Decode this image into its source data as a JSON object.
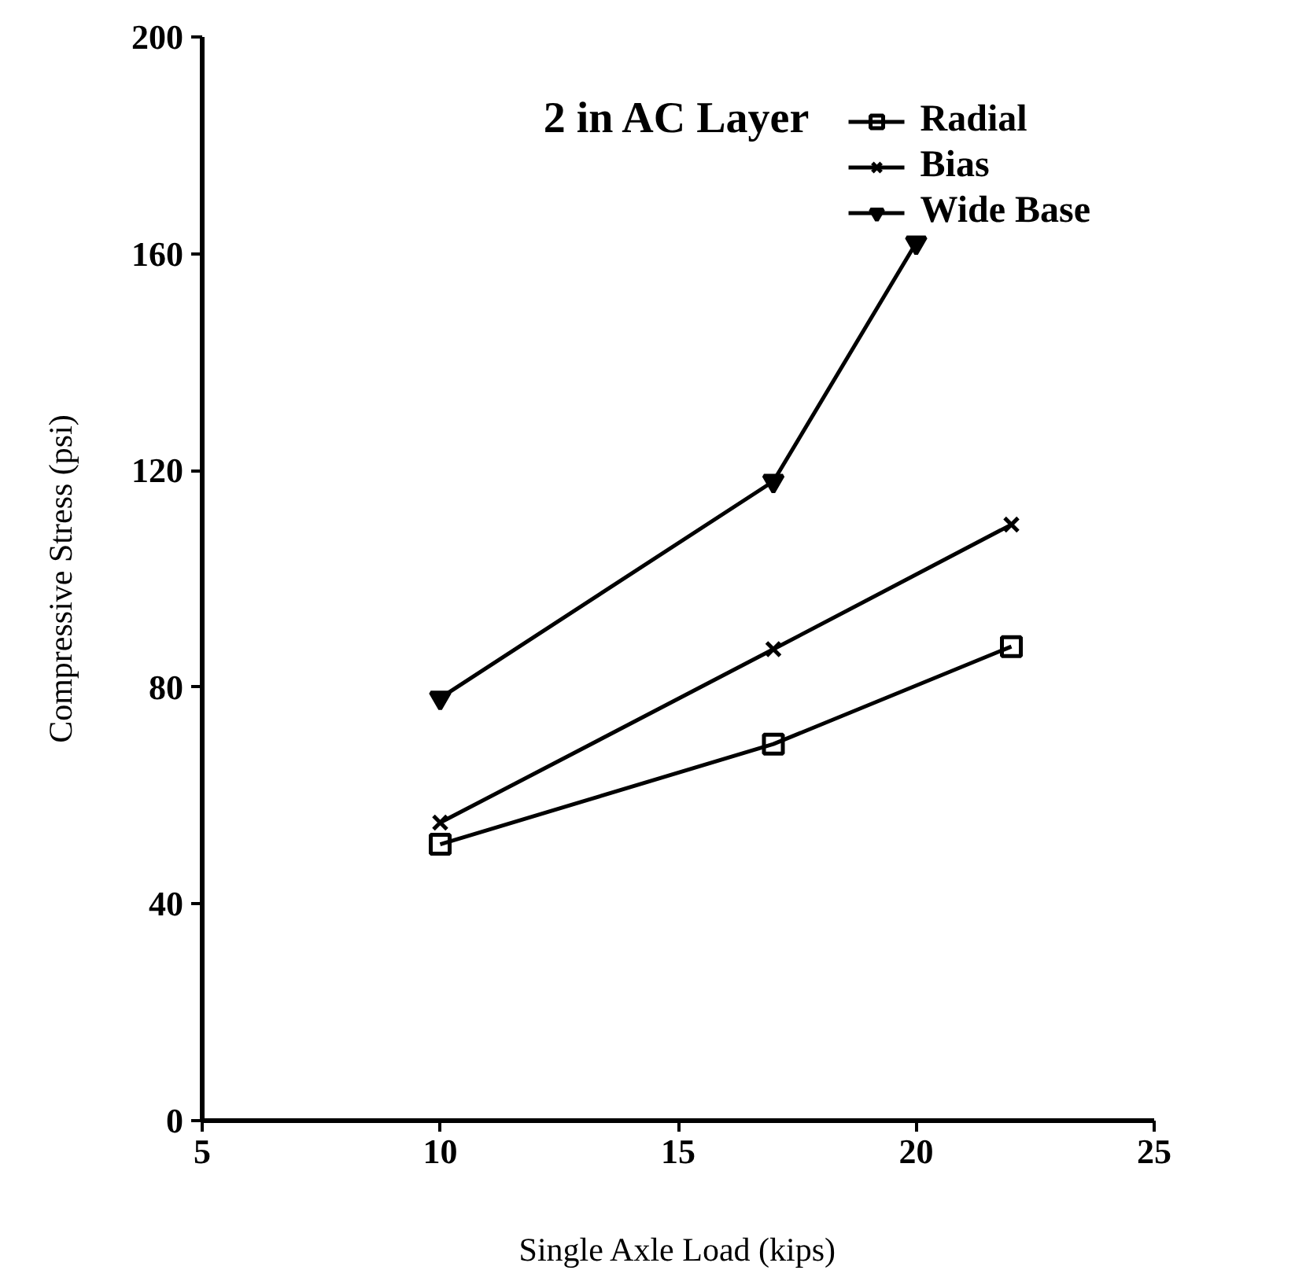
{
  "chart_data": {
    "type": "line",
    "title": "2 in AC Layer",
    "xlabel": "Single Axle Load (kips)",
    "ylabel": "Compressive Stress (psi)",
    "xlim": [
      5,
      25
    ],
    "xticks": [
      5,
      10,
      15,
      20,
      25
    ],
    "ylim": [
      0,
      200
    ],
    "yticks": [
      0,
      40,
      80,
      120,
      160,
      200
    ],
    "grid": false,
    "legend": "top right",
    "line_style": "solid",
    "series": [
      {
        "name": "Radial",
        "color": "#000000",
        "marker": "square",
        "x": [
          10,
          17,
          22
        ],
        "values": [
          51,
          69.5,
          87.5
        ]
      },
      {
        "name": "Bias",
        "color": "#000000",
        "marker": "cross",
        "x": [
          10,
          17,
          22
        ],
        "values": [
          55,
          87,
          110
        ]
      },
      {
        "name": "Wide Base",
        "color": "#000000",
        "marker": "triangle",
        "x": [
          10,
          17,
          20
        ],
        "values": [
          78,
          118,
          162
        ]
      }
    ]
  }
}
